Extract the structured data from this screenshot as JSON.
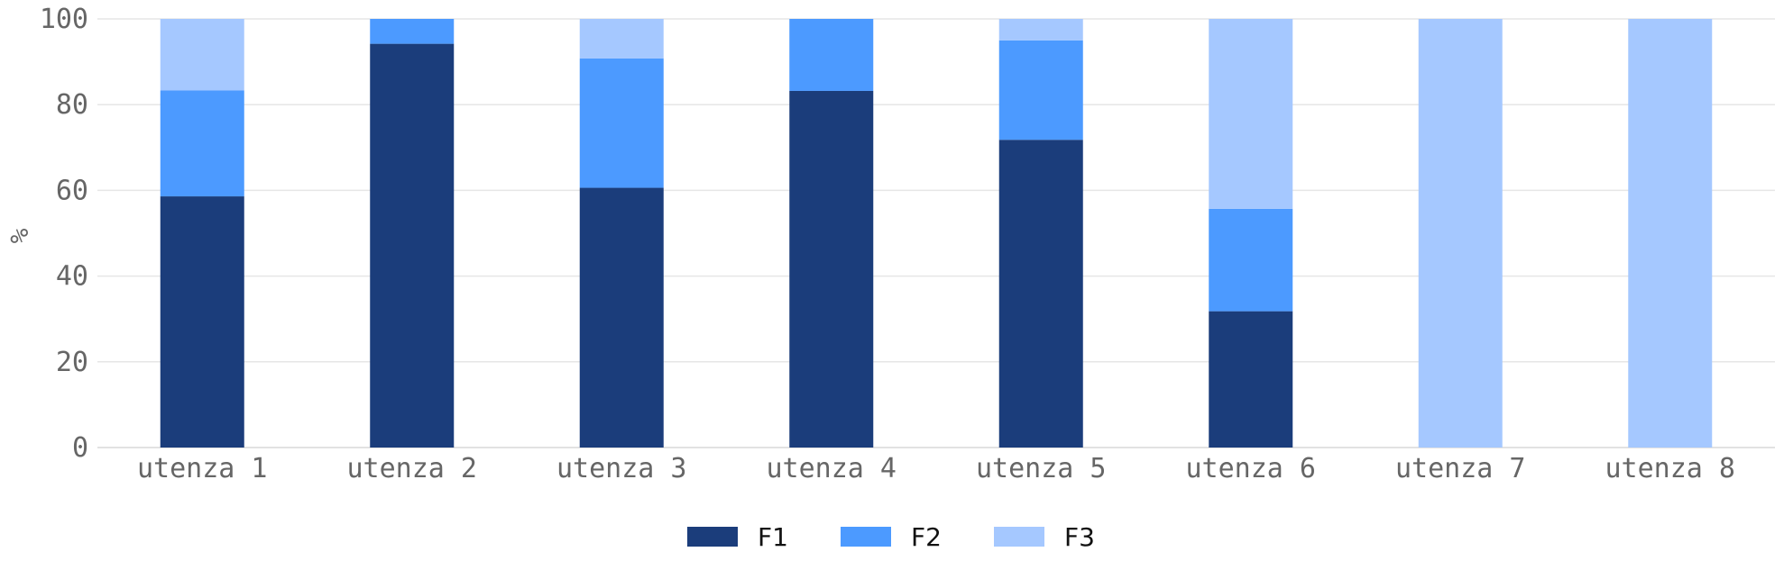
{
  "chart_data": {
    "type": "bar",
    "stacked": true,
    "categories": [
      "utenza 1",
      "utenza 2",
      "utenza 3",
      "utenza 4",
      "utenza 5",
      "utenza 6",
      "utenza 7",
      "utenza 8"
    ],
    "series": [
      {
        "name": "F1",
        "color": "#1b3d7b",
        "values": [
          58.6,
          94.2,
          60.6,
          83.2,
          71.8,
          31.8,
          0,
          0
        ]
      },
      {
        "name": "F2",
        "color": "#4c9aff",
        "values": [
          24.7,
          5.8,
          30.2,
          16.8,
          23.2,
          23.9,
          0,
          0
        ]
      },
      {
        "name": "F3",
        "color": "#a5c8ff",
        "values": [
          16.7,
          0,
          9.2,
          0,
          5.0,
          44.3,
          100,
          100
        ]
      }
    ],
    "title": "",
    "xlabel": "",
    "ylabel": "%",
    "ylim": [
      0,
      100
    ],
    "yticks": [
      0,
      20,
      40,
      60,
      80,
      100
    ],
    "grid": "horizontal",
    "legend": "bottom-center"
  }
}
